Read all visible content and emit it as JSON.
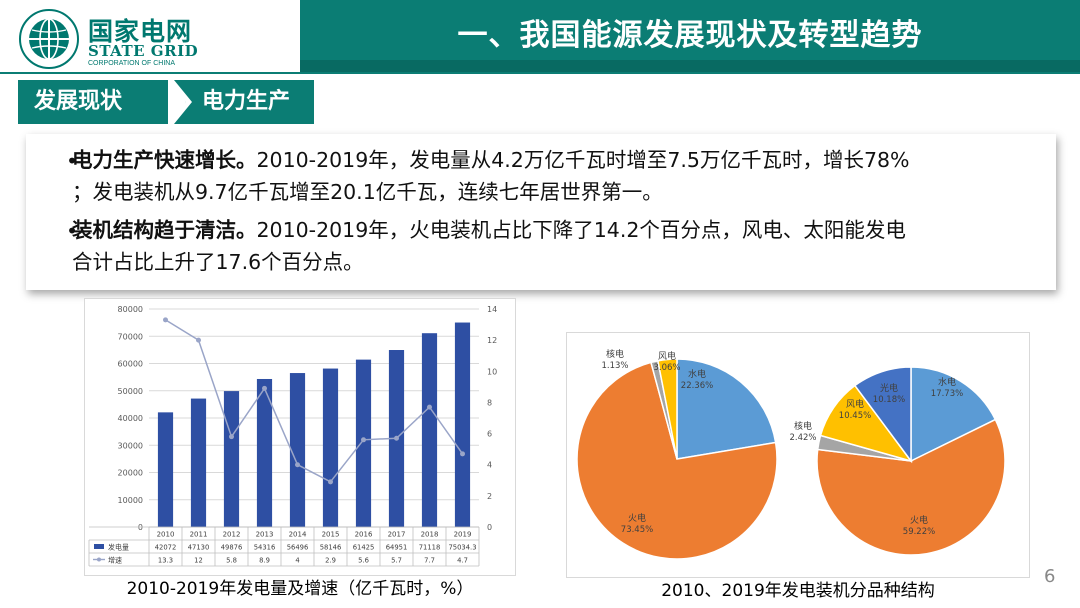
{
  "header": {
    "logo_cn": "国家电网",
    "logo_en": "STATE GRID",
    "logo_sub": "CORPORATION OF CHINA",
    "title": "一、我国能源发展现状及转型趋势"
  },
  "tags": {
    "left": "发展现状",
    "right": "电力生产"
  },
  "bullets": [
    {
      "bold": "电力生产快速增长。",
      "text_line1": "2010-2019年，发电量从4.2万亿千瓦时增至7.5万亿千瓦时，增长78%",
      "text_line2": "；发电装机从9.7亿千瓦增至20.1亿千瓦，连续七年居世界第一。"
    },
    {
      "bold": "装机结构趋于清洁。",
      "text_line1": "2010-2019年，火电装机占比下降了14.2个百分点，风电、太阳能发电",
      "text_line2": "合计占比上升了17.6个百分点。"
    }
  ],
  "page_number": "6",
  "colors": {
    "teal": "#0b7d74",
    "bar": "#2e4fa3",
    "line": "#9aa5c8",
    "hydro": "#5b9bd5",
    "thermal": "#ed7d31",
    "nuclear": "#a5a5a5",
    "wind": "#ffc000",
    "solar": "#4472c4"
  },
  "chart_data": [
    {
      "type": "bar",
      "caption": "2010-2019年发电量及增速（亿千瓦时，%）",
      "categories": [
        "2010",
        "2011",
        "2012",
        "2013",
        "2014",
        "2015",
        "2016",
        "2017",
        "2018",
        "2019"
      ],
      "series": [
        {
          "name": "发电量",
          "type": "bar",
          "axis": "left",
          "values": [
            42072,
            47130,
            49876,
            54316,
            56496,
            58146,
            61425,
            64951,
            71118,
            75034.3
          ],
          "labels": [
            "42072",
            "47130",
            "49876",
            "54316",
            "56496",
            "58146",
            "61425",
            "64951",
            "71118",
            "75034.3"
          ]
        },
        {
          "name": "增速",
          "type": "line",
          "axis": "right",
          "values": [
            13.3,
            12,
            5.8,
            8.9,
            4,
            2.9,
            5.6,
            5.7,
            7.7,
            4.7
          ],
          "labels": [
            "13.3",
            "12",
            "5.8",
            "8.9",
            "4",
            "2.9",
            "5.6",
            "5.7",
            "7.7",
            "4.7"
          ]
        }
      ],
      "ylim_left": [
        0,
        80000
      ],
      "yticks_left": [
        "0",
        "10000",
        "20000",
        "30000",
        "40000",
        "50000",
        "60000",
        "70000",
        "80000"
      ],
      "ylim_right": [
        0,
        14
      ],
      "yticks_right": [
        "0",
        "2",
        "4",
        "6",
        "8",
        "10",
        "12",
        "14"
      ],
      "grid": true,
      "legend": "bottom-table"
    },
    {
      "type": "pie",
      "caption": "2010、2019年发电装机分品种结构",
      "pies": [
        {
          "slices": [
            {
              "name": "水电",
              "value": 22.36,
              "label": "22.36%"
            },
            {
              "name": "火电",
              "value": 73.45,
              "label": "73.45%"
            },
            {
              "name": "核电",
              "value": 1.13,
              "label": "1.13%"
            },
            {
              "name": "风电",
              "value": 3.06,
              "label": "3.06%"
            }
          ]
        },
        {
          "slices": [
            {
              "name": "水电",
              "value": 17.73,
              "label": "17.73%"
            },
            {
              "name": "火电",
              "value": 59.22,
              "label": "59.22%"
            },
            {
              "name": "核电",
              "value": 2.42,
              "label": "2.42%"
            },
            {
              "name": "风电",
              "value": 10.45,
              "label": "10.45%"
            },
            {
              "name": "光电",
              "value": 10.18,
              "label": "10.18%"
            }
          ]
        }
      ]
    }
  ]
}
